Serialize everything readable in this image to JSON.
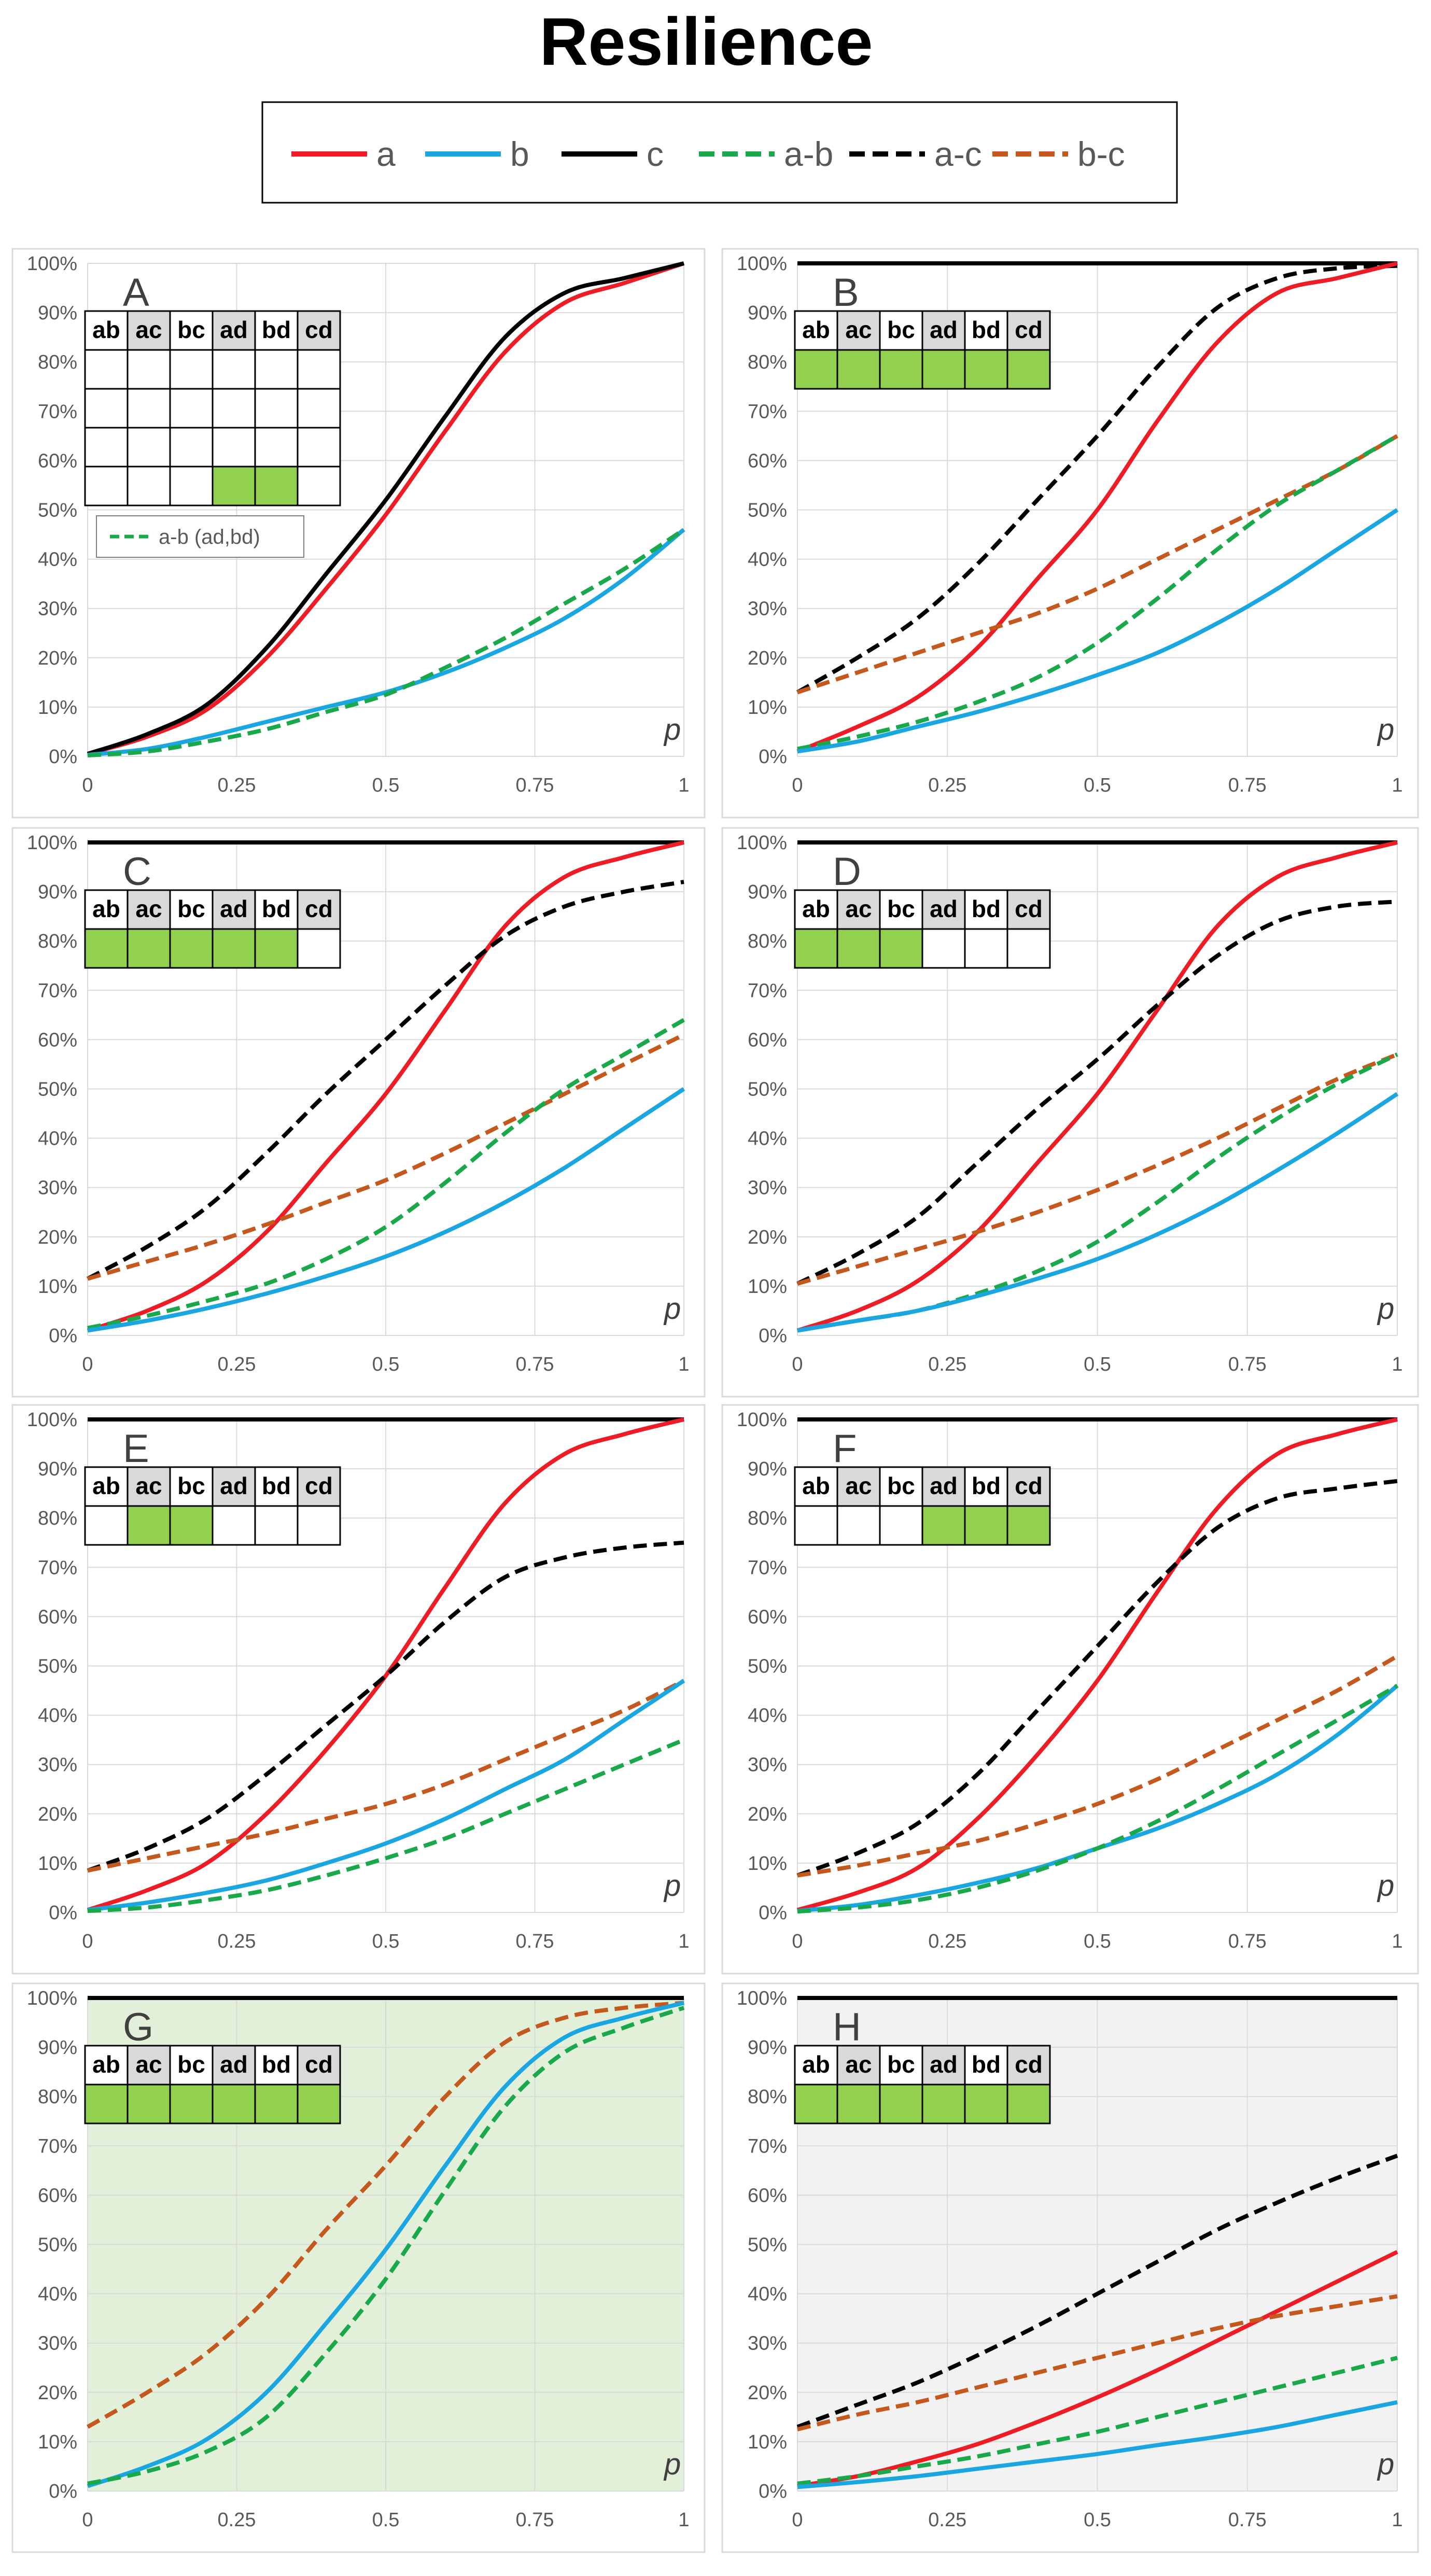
{
  "title": "Resilience",
  "series_styles": [
    {
      "name": "a",
      "color": "#ee1c25",
      "dashed": false
    },
    {
      "name": "b",
      "color": "#1aa7e1",
      "dashed": false
    },
    {
      "name": "c",
      "color": "#000000",
      "dashed": false
    },
    {
      "name": "a-b",
      "color": "#19a94b",
      "dashed": true
    },
    {
      "name": "a-c",
      "color": "#000000",
      "dashed": true
    },
    {
      "name": "b-c",
      "color": "#c5581d",
      "dashed": true
    }
  ],
  "grid_headers": [
    "ab",
    "ac",
    "bc",
    "ad",
    "bd",
    "cd"
  ],
  "cell_fill": "#92d050",
  "axes": {
    "x_ticks": [
      "0",
      "0.25",
      "0.5",
      "0.75",
      "1"
    ],
    "y_ticks": [
      "0%",
      "10%",
      "20%",
      "30%",
      "40%",
      "50%",
      "60%",
      "70%",
      "80%",
      "90%",
      "100%"
    ],
    "xlabel": "p",
    "xlim": [
      0,
      1
    ],
    "ylim": [
      0,
      100
    ]
  },
  "chart_data": [
    {
      "panel": "A",
      "type": "line",
      "background": "#ffffff",
      "grid_rows": 4,
      "highlight": [
        [
          3,
          3
        ],
        [
          3,
          4
        ]
      ],
      "inset_legend": "a-b (ad,bd)",
      "x": [
        0,
        0.1,
        0.2,
        0.3,
        0.4,
        0.5,
        0.6,
        0.7,
        0.8,
        0.9,
        1
      ],
      "series": [
        {
          "name": "a",
          "values": [
            0.5,
            4,
            9.5,
            20,
            34,
            49,
            66,
            82,
            92,
            96,
            100
          ]
        },
        {
          "name": "c",
          "values": [
            0.5,
            4.5,
            10.5,
            22,
            37,
            52,
            69,
            85,
            94,
            97,
            100
          ]
        },
        {
          "name": "b",
          "values": [
            0.3,
            1.5,
            4,
            7,
            10,
            13,
            17,
            22,
            28,
            36,
            46
          ]
        },
        {
          "name": "a-b",
          "values": [
            0.2,
            1,
            3,
            5.5,
            9,
            12.5,
            18,
            24,
            31,
            38,
            46
          ]
        }
      ]
    },
    {
      "panel": "B",
      "type": "line",
      "background": "#ffffff",
      "grid_rows": 1,
      "highlight": [
        [
          0,
          0
        ],
        [
          0,
          1
        ],
        [
          0,
          2
        ],
        [
          0,
          3
        ],
        [
          0,
          4
        ],
        [
          0,
          5
        ]
      ],
      "inset_legend": "",
      "x": [
        0,
        0.1,
        0.2,
        0.3,
        0.4,
        0.5,
        0.6,
        0.7,
        0.8,
        0.9,
        1
      ],
      "series": [
        {
          "name": "c",
          "values": [
            100,
            100,
            100,
            100,
            100,
            100,
            100,
            100,
            100,
            100,
            100
          ]
        },
        {
          "name": "a-c",
          "values": [
            13,
            20,
            28,
            39,
            52,
            65,
            79,
            91,
            97,
            99,
            99.5
          ]
        },
        {
          "name": "a",
          "values": [
            1,
            6,
            12,
            22,
            36,
            50,
            68,
            84,
            94,
            97,
            100
          ]
        },
        {
          "name": "b-c",
          "values": [
            13,
            17,
            21,
            25,
            29,
            34,
            40,
            46,
            52,
            58,
            65
          ]
        },
        {
          "name": "a-b",
          "values": [
            1.5,
            4,
            7,
            11,
            16,
            23,
            32,
            42,
            51,
            58,
            65
          ]
        },
        {
          "name": "b",
          "values": [
            1,
            3,
            6,
            9,
            12.5,
            16.5,
            21,
            27,
            34,
            42,
            50
          ]
        }
      ]
    },
    {
      "panel": "C",
      "type": "line",
      "background": "#ffffff",
      "grid_rows": 1,
      "highlight": [
        [
          0,
          0
        ],
        [
          0,
          1
        ],
        [
          0,
          2
        ],
        [
          0,
          3
        ],
        [
          0,
          4
        ]
      ],
      "inset_legend": "",
      "x": [
        0,
        0.1,
        0.2,
        0.3,
        0.4,
        0.5,
        0.6,
        0.7,
        0.8,
        0.9,
        1
      ],
      "series": [
        {
          "name": "c",
          "values": [
            100,
            100,
            100,
            100,
            100,
            100,
            100,
            100,
            100,
            100,
            100
          ]
        },
        {
          "name": "a",
          "values": [
            1,
            5,
            11,
            21,
            35,
            49,
            66,
            83,
            93,
            97,
            100
          ]
        },
        {
          "name": "a-c",
          "values": [
            11.5,
            18,
            26,
            37,
            49,
            60,
            71,
            81,
            87,
            90,
            92
          ]
        },
        {
          "name": "b-c",
          "values": [
            11.5,
            15,
            18.5,
            22.5,
            27,
            31.5,
            37,
            43,
            49,
            55,
            61
          ]
        },
        {
          "name": "a-b",
          "values": [
            1.5,
            4,
            7,
            10.5,
            15.5,
            22,
            31,
            41,
            50,
            57,
            64
          ]
        },
        {
          "name": "b",
          "values": [
            1,
            3,
            5.5,
            8.5,
            12,
            16,
            21,
            27,
            34,
            42,
            50
          ]
        }
      ]
    },
    {
      "panel": "D",
      "type": "line",
      "background": "#ffffff",
      "grid_rows": 1,
      "highlight": [
        [
          0,
          0
        ],
        [
          0,
          1
        ],
        [
          0,
          2
        ]
      ],
      "inset_legend": "",
      "x": [
        0,
        0.1,
        0.2,
        0.3,
        0.4,
        0.5,
        0.6,
        0.7,
        0.8,
        0.9,
        1
      ],
      "series": [
        {
          "name": "c",
          "values": [
            100,
            100,
            100,
            100,
            100,
            100,
            100,
            100,
            100,
            100,
            100
          ]
        },
        {
          "name": "a",
          "values": [
            1,
            5,
            11,
            21,
            35,
            49,
            66,
            83,
            93,
            97,
            100
          ]
        },
        {
          "name": "a-c",
          "values": [
            10.5,
            16.5,
            24,
            35,
            46,
            56,
            67,
            77,
            84,
            87,
            88
          ]
        },
        {
          "name": "b-c",
          "values": [
            10.5,
            14,
            17.5,
            21,
            25,
            29.5,
            34.5,
            40,
            46,
            52,
            57
          ]
        },
        {
          "name": "a-b",
          "values": [
            1,
            3,
            5,
            8.5,
            13,
            19,
            27,
            36,
            44,
            51,
            57
          ]
        },
        {
          "name": "b",
          "values": [
            1,
            3,
            5,
            8,
            11.5,
            15.5,
            20.5,
            26.5,
            33.5,
            41,
            49
          ]
        }
      ]
    },
    {
      "panel": "E",
      "type": "line",
      "background": "#ffffff",
      "grid_rows": 1,
      "highlight": [
        [
          0,
          1
        ],
        [
          0,
          2
        ]
      ],
      "inset_legend": "",
      "x": [
        0,
        0.1,
        0.2,
        0.3,
        0.4,
        0.5,
        0.6,
        0.7,
        0.8,
        0.9,
        1
      ],
      "series": [
        {
          "name": "c",
          "values": [
            100,
            100,
            100,
            100,
            100,
            100,
            100,
            100,
            100,
            100,
            100
          ]
        },
        {
          "name": "a",
          "values": [
            0.5,
            4.5,
            10,
            20,
            33,
            48,
            66,
            83,
            93,
            97,
            100
          ]
        },
        {
          "name": "a-c",
          "values": [
            8.5,
            13,
            19,
            28,
            38,
            48,
            59,
            68,
            72,
            74,
            75
          ]
        },
        {
          "name": "b-c",
          "values": [
            8.5,
            11,
            13.5,
            16,
            19,
            22,
            26,
            31,
            36,
            41,
            47
          ]
        },
        {
          "name": "b",
          "values": [
            0.5,
            2,
            4,
            6.5,
            10,
            14,
            19,
            25,
            31,
            39,
            47
          ]
        },
        {
          "name": "a-b",
          "values": [
            0.3,
            1,
            2.5,
            4.5,
            7.5,
            11,
            15,
            20,
            25,
            30,
            35
          ]
        }
      ]
    },
    {
      "panel": "F",
      "type": "line",
      "background": "#ffffff",
      "grid_rows": 1,
      "highlight": [
        [
          0,
          3
        ],
        [
          0,
          4
        ],
        [
          0,
          5
        ]
      ],
      "inset_legend": "",
      "x": [
        0,
        0.1,
        0.2,
        0.3,
        0.4,
        0.5,
        0.6,
        0.7,
        0.8,
        0.9,
        1
      ],
      "series": [
        {
          "name": "c",
          "values": [
            100,
            100,
            100,
            100,
            100,
            100,
            100,
            100,
            100,
            100,
            100
          ]
        },
        {
          "name": "a",
          "values": [
            0.5,
            4,
            9,
            19,
            32,
            47,
            65,
            82,
            93,
            97,
            100
          ]
        },
        {
          "name": "a-c",
          "values": [
            7.5,
            12,
            18,
            28,
            41,
            54,
            67,
            78,
            84,
            86,
            87.5
          ]
        },
        {
          "name": "b-c",
          "values": [
            7.5,
            9.5,
            12,
            14.5,
            18,
            22,
            27,
            33,
            39,
            45,
            52
          ]
        },
        {
          "name": "b",
          "values": [
            0.3,
            1.5,
            3.5,
            6,
            9,
            13,
            17,
            22,
            28,
            36,
            46
          ]
        },
        {
          "name": "a-b",
          "values": [
            0.2,
            1,
            2.5,
            5,
            8.5,
            13,
            18.5,
            25,
            32,
            39,
            46
          ]
        }
      ]
    },
    {
      "panel": "G",
      "type": "line",
      "background": "#e2efd9",
      "grid_rows": 1,
      "highlight": [
        [
          0,
          0
        ],
        [
          0,
          1
        ],
        [
          0,
          2
        ],
        [
          0,
          3
        ],
        [
          0,
          4
        ],
        [
          0,
          5
        ]
      ],
      "inset_legend": "",
      "x": [
        0,
        0.1,
        0.2,
        0.3,
        0.4,
        0.5,
        0.6,
        0.7,
        0.8,
        0.9,
        1
      ],
      "series": [
        {
          "name": "c",
          "values": [
            100,
            100,
            100,
            100,
            100,
            100,
            100,
            100,
            100,
            100,
            100
          ]
        },
        {
          "name": "b-c",
          "values": [
            13,
            20,
            28,
            39,
            53,
            66,
            80,
            91,
            96,
            98,
            99
          ]
        },
        {
          "name": "b",
          "values": [
            1,
            5,
            10.5,
            20,
            34,
            49,
            66,
            82,
            92,
            96,
            99
          ]
        },
        {
          "name": "a-b",
          "values": [
            1.5,
            4,
            8,
            15,
            28,
            43,
            61,
            78,
            89,
            94,
            98
          ]
        }
      ]
    },
    {
      "panel": "H",
      "type": "line",
      "background": "#f2f2f2",
      "grid_rows": 1,
      "highlight": [
        [
          0,
          0
        ],
        [
          0,
          1
        ],
        [
          0,
          2
        ],
        [
          0,
          3
        ],
        [
          0,
          4
        ],
        [
          0,
          5
        ]
      ],
      "inset_legend": "",
      "x": [
        0,
        0.1,
        0.2,
        0.3,
        0.4,
        0.5,
        0.6,
        0.7,
        0.8,
        0.9,
        1
      ],
      "series": [
        {
          "name": "c",
          "values": [
            100,
            100,
            100,
            100,
            100,
            100,
            100,
            100,
            100,
            100,
            100
          ]
        },
        {
          "name": "a-c",
          "values": [
            13,
            17.5,
            22,
            27.5,
            33.5,
            40,
            46.5,
            53,
            58.5,
            63.5,
            68
          ]
        },
        {
          "name": "a",
          "values": [
            1,
            3,
            6,
            9.5,
            14,
            19,
            24.5,
            30.5,
            36.5,
            42.5,
            48.5
          ]
        },
        {
          "name": "b-c",
          "values": [
            12.5,
            15.5,
            18,
            21,
            24,
            27,
            30,
            33,
            35.5,
            37.5,
            39.5
          ]
        },
        {
          "name": "a-b",
          "values": [
            1.5,
            3,
            5,
            7,
            9.5,
            12,
            15,
            18,
            21,
            24,
            27
          ]
        },
        {
          "name": "b",
          "values": [
            0.8,
            1.8,
            3,
            4.5,
            6,
            7.5,
            9.3,
            11,
            13,
            15.5,
            18
          ]
        }
      ]
    }
  ]
}
